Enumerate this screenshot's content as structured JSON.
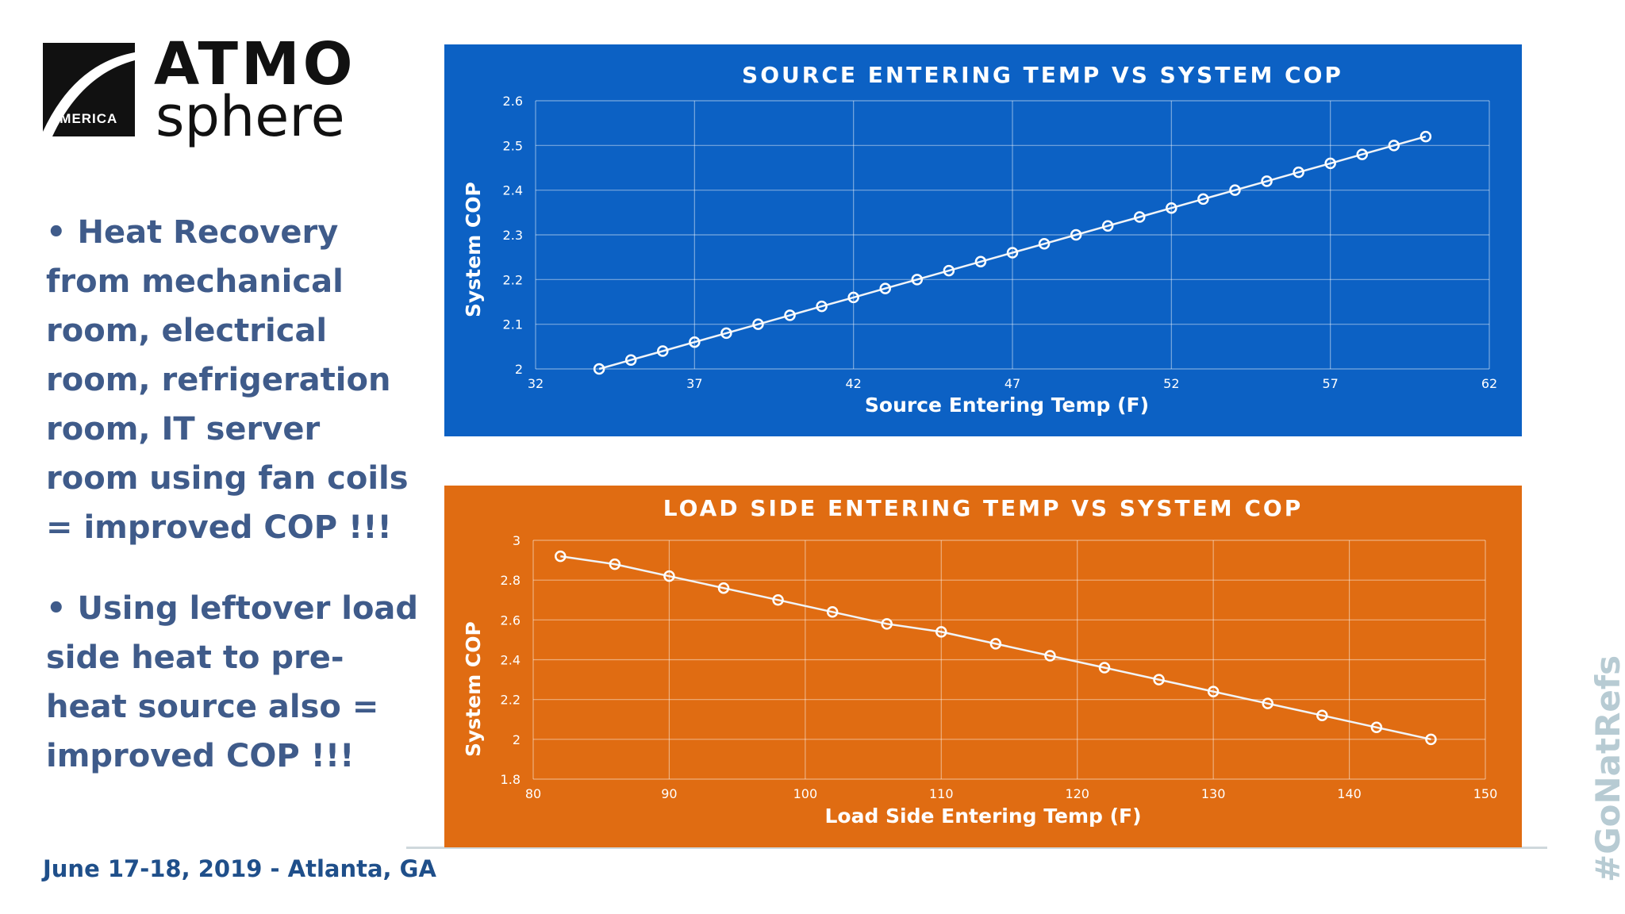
{
  "logo": {
    "badge": "AMERICA",
    "line1": "ATMO",
    "line2": "sphere",
    "mark_icon": "arc-swoosh-icon",
    "mark_color": "#111111"
  },
  "bullets": [
    "• Heat Recovery from mechanical room, electrical room, refrigeration room, IT server room using fan coils = improved COP !!!",
    "• Using leftover load side heat to pre-heat source also = improved COP !!!"
  ],
  "footer": {
    "event": "June 17-18, 2019 - Atlanta, GA",
    "hashtag": "#GoNatRefs"
  },
  "colors": {
    "bullet_text": "#3f5b8a",
    "source_panel": "#0c61c4",
    "load_panel": "#e06c12",
    "hashtag": "#b7cbd3"
  },
  "chart_data": [
    {
      "type": "line",
      "title": "SOURCE  ENTERING TEMP VS SYSTEM COP",
      "xlabel": "Source Entering Temp (F)",
      "ylabel": "System COP",
      "xlim": [
        32,
        62
      ],
      "ylim": [
        2,
        2.6
      ],
      "xticks": [
        32,
        37,
        42,
        47,
        52,
        57,
        62
      ],
      "yticks": [
        2,
        2.1,
        2.2,
        2.3,
        2.4,
        2.5,
        2.6
      ],
      "ytick_labels": [
        "2",
        "2.1",
        "2.2",
        "2.3",
        "2.4",
        "2.5",
        "2.6"
      ],
      "grid": true,
      "legend": "none",
      "series": [
        {
          "x": [
            34,
            35,
            36,
            37,
            38,
            39,
            40,
            41,
            42,
            43,
            44,
            45,
            46,
            47,
            48,
            49,
            50,
            51,
            52,
            53,
            54,
            55,
            56,
            57,
            58,
            59,
            60
          ],
          "values": [
            2.0,
            2.02,
            2.04,
            2.06,
            2.08,
            2.1,
            2.12,
            2.14,
            2.16,
            2.18,
            2.2,
            2.22,
            2.24,
            2.26,
            2.28,
            2.3,
            2.32,
            2.34,
            2.36,
            2.38,
            2.4,
            2.42,
            2.44,
            2.46,
            2.48,
            2.5,
            2.52
          ]
        }
      ]
    },
    {
      "type": "line",
      "title": "LOAD SIDE ENTERING TEMP VS SYSTEM COP",
      "xlabel": "Load Side Entering Temp (F)",
      "ylabel": "System COP",
      "xlim": [
        80,
        150
      ],
      "ylim": [
        1.8,
        3
      ],
      "xticks": [
        80,
        90,
        100,
        110,
        120,
        130,
        140,
        150
      ],
      "yticks": [
        1.8,
        2,
        2.2,
        2.4,
        2.6,
        2.8,
        3
      ],
      "ytick_labels": [
        "1.8",
        "2",
        "2.2",
        "2.4",
        "2.6",
        "2.8",
        "3"
      ],
      "grid": true,
      "legend": "none",
      "series": [
        {
          "x": [
            82,
            86,
            90,
            94,
            98,
            102,
            106,
            110,
            114,
            118,
            122,
            126,
            130,
            134,
            138,
            142,
            146
          ],
          "values": [
            2.92,
            2.88,
            2.82,
            2.76,
            2.7,
            2.64,
            2.58,
            2.54,
            2.48,
            2.42,
            2.36,
            2.3,
            2.24,
            2.18,
            2.12,
            2.06,
            2.0
          ]
        }
      ]
    }
  ]
}
